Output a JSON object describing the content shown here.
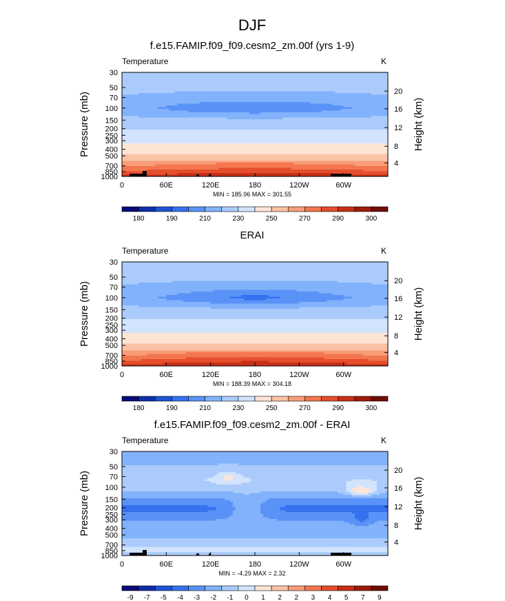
{
  "figure_title": "DJF",
  "chart_data": [
    {
      "type": "heatmap",
      "title": "f.e15.FAMIP.f09_f09.cesm2_zm.00f (yrs 1-9)",
      "left_label": "Temperature",
      "units": "K",
      "ylabel": "Pressure (mb)",
      "ylabel_right": "Height (km)",
      "pressure_ticks": [
        "30",
        "50",
        "70",
        "100",
        "150",
        "200",
        "250",
        "300",
        "400",
        "500",
        "700",
        "850",
        "1000"
      ],
      "height_ticks": [
        "20",
        "16",
        "12",
        "8",
        "4"
      ],
      "x_ticks": [
        "0",
        "60E",
        "120E",
        "180",
        "120W",
        "60W"
      ],
      "stats": "MIN = 185.96  MAX = 301.55",
      "colorbar_labels": [
        "180",
        "190",
        "210",
        "230",
        "250",
        "270",
        "290",
        "300"
      ],
      "colors": [
        "#0a0a78",
        "#0f2fa8",
        "#1e54d6",
        "#3672f0",
        "#5a93f7",
        "#82b2fb",
        "#aacbfb",
        "#d2e3fd",
        "#fde5d6",
        "#fbc3a6",
        "#f89d78",
        "#f3764f",
        "#e54e2d",
        "#c72f16",
        "#a01a08",
        "#6f0d04"
      ],
      "field": "temperature",
      "min": 185.96,
      "max": 301.55
    },
    {
      "type": "heatmap",
      "title": "ERAI",
      "left_label": "Temperature",
      "units": "K",
      "ylabel": "Pressure (mb)",
      "ylabel_right": "Height (km)",
      "pressure_ticks": [
        "30",
        "50",
        "70",
        "100",
        "150",
        "200",
        "250",
        "300",
        "400",
        "500",
        "700",
        "850",
        "1000"
      ],
      "height_ticks": [
        "20",
        "16",
        "12",
        "8",
        "4"
      ],
      "x_ticks": [
        "0",
        "60E",
        "120E",
        "180",
        "120W",
        "60W"
      ],
      "stats": "MIN = 188.39  MAX = 304.18",
      "colorbar_labels": [
        "180",
        "190",
        "210",
        "230",
        "250",
        "270",
        "290",
        "300"
      ],
      "colors": [
        "#0a0a78",
        "#0f2fa8",
        "#1e54d6",
        "#3672f0",
        "#5a93f7",
        "#82b2fb",
        "#aacbfb",
        "#d2e3fd",
        "#fde5d6",
        "#fbc3a6",
        "#f89d78",
        "#f3764f",
        "#e54e2d",
        "#c72f16",
        "#a01a08",
        "#6f0d04"
      ],
      "field": "temperature",
      "min": 188.39,
      "max": 304.18
    },
    {
      "type": "heatmap",
      "title": "f.e15.FAMIP.f09_f09.cesm2_zm.00f - ERAI",
      "left_label": "Temperature",
      "units": "K",
      "ylabel": "Pressure (mb)",
      "ylabel_right": "Height (km)",
      "pressure_ticks": [
        "30",
        "50",
        "70",
        "100",
        "150",
        "200",
        "250",
        "300",
        "400",
        "500",
        "700",
        "850",
        "1000"
      ],
      "height_ticks": [
        "20",
        "16",
        "12",
        "8",
        "4"
      ],
      "x_ticks": [
        "0",
        "60E",
        "120E",
        "180",
        "120W",
        "60W"
      ],
      "stats": "MIN = -4.29  MAX = 2.32",
      "colorbar_labels": [
        "-9",
        "-7",
        "-5",
        "-4",
        "-3",
        "-2",
        "-1",
        "0",
        "1",
        "2",
        "2",
        "3",
        "4",
        "5",
        "7",
        "9"
      ],
      "colors": [
        "#0a0a78",
        "#0f2fa8",
        "#1e54d6",
        "#3672f0",
        "#5a93f7",
        "#82b2fb",
        "#aacbfb",
        "#d2e3fd",
        "#fde5d6",
        "#fbc3a6",
        "#f89d78",
        "#f3764f",
        "#e54e2d",
        "#c72f16",
        "#a01a08",
        "#6f0d04"
      ],
      "field": "difference",
      "min": -4.29,
      "max": 2.32
    }
  ]
}
